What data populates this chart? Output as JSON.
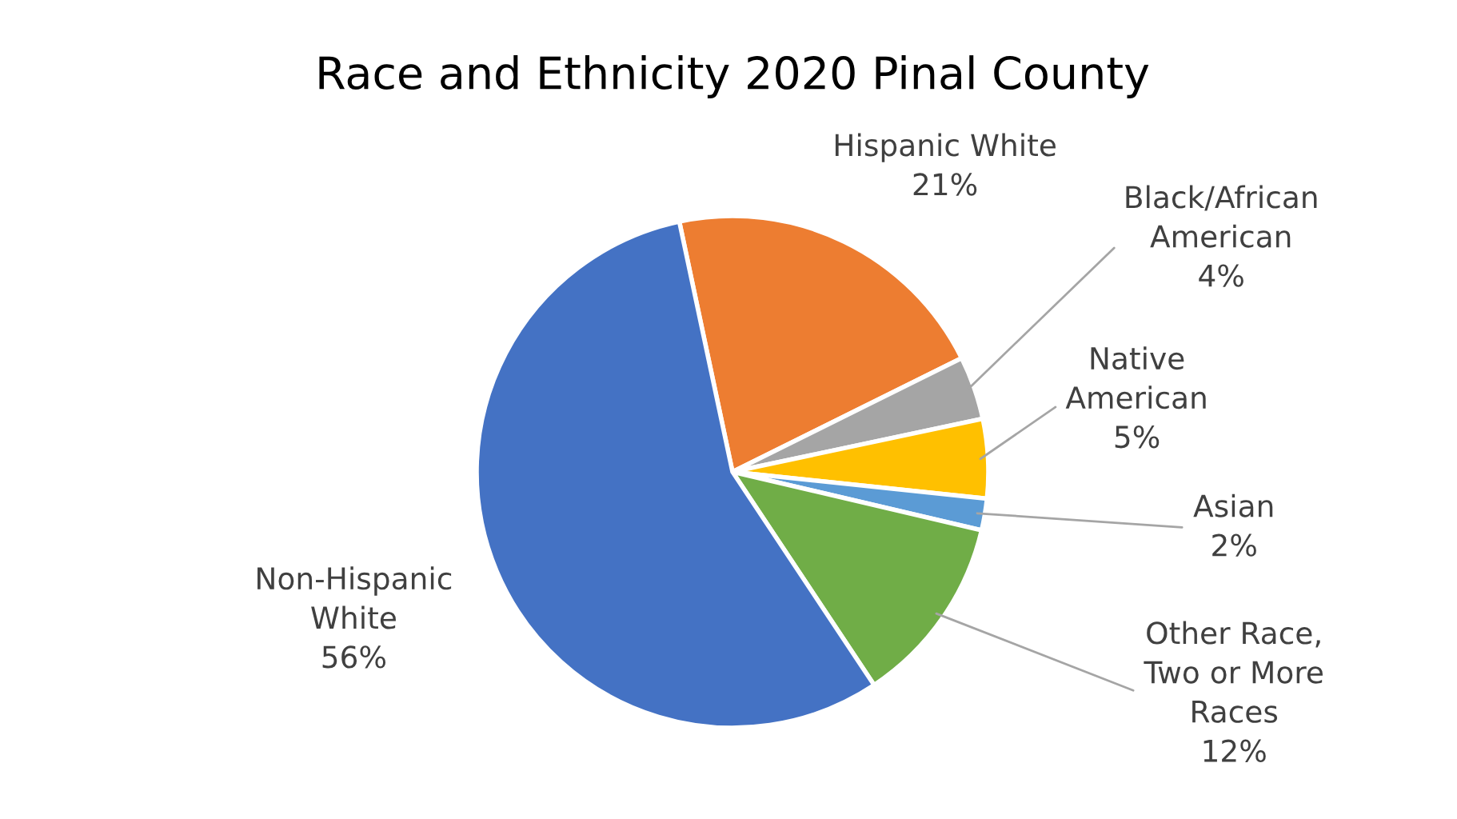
{
  "chart_data": {
    "type": "pie",
    "title": "Race and Ethnicity 2020 Pinal County",
    "categories": [
      "Hispanic White",
      "Black/African\nAmerican",
      "Native\nAmerican",
      "Asian",
      "Other Race,\nTwo or More\nRaces",
      "Non-Hispanic\nWhite"
    ],
    "values": [
      21,
      4,
      5,
      2,
      12,
      56
    ],
    "colors": [
      "#ed7d31",
      "#a5a5a5",
      "#ffc000",
      "#5b9bd5",
      "#70ad47",
      "#4472c4"
    ],
    "value_labels": [
      "21%",
      "4%",
      "5%",
      "2%",
      "12%",
      "56%"
    ]
  }
}
